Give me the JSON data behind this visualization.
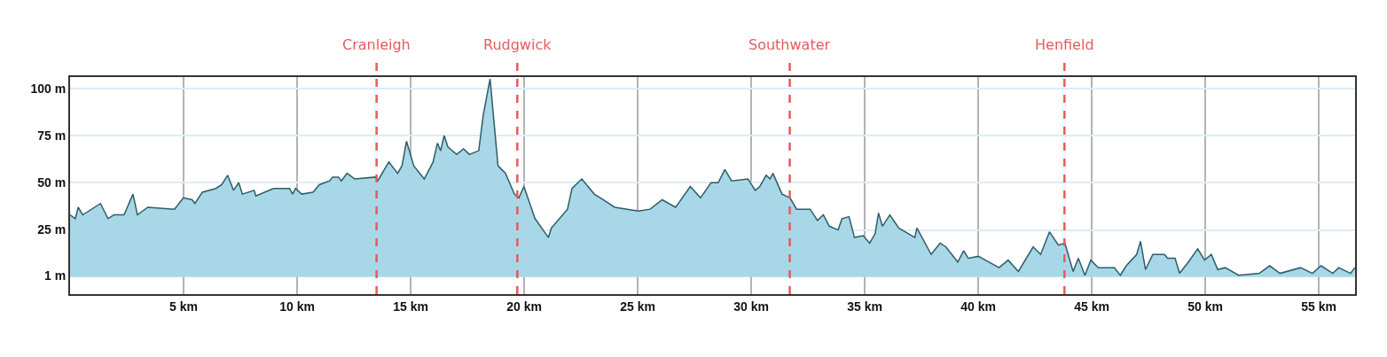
{
  "chart_data": {
    "type": "area",
    "x": [
      0,
      0.23,
      0.36,
      0.56,
      1.34,
      1.67,
      1.93,
      2.38,
      2.77,
      2.97,
      3.42,
      4.6,
      4.99,
      5.38,
      5.5,
      5.83,
      6.42,
      6.68,
      6.94,
      7.2,
      7.43,
      7.59,
      8.11,
      8.18,
      8.96,
      9.67,
      9.8,
      9.93,
      10.2,
      10.7,
      10.98,
      11.43,
      11.56,
      11.82,
      11.95,
      12.2,
      12.54,
      13.45,
      13.55,
      14.04,
      14.43,
      14.62,
      14.82,
      15.14,
      15.6,
      15.99,
      16.18,
      16.32,
      16.48,
      16.64,
      17.03,
      17.33,
      17.59,
      18.0,
      18.2,
      18.5,
      18.85,
      19.18,
      19.57,
      19.77,
      19.99,
      20.48,
      21.07,
      21.2,
      21.91,
      22.11,
      22.54,
      23.09,
      23.48,
      23.99,
      25.04,
      25.55,
      26.08,
      26.67,
      27.32,
      27.77,
      28.23,
      28.55,
      28.84,
      29.14,
      29.86,
      30.18,
      30.38,
      30.66,
      30.83,
      30.96,
      31.36,
      31.71,
      32.0,
      32.6,
      32.92,
      33.18,
      33.44,
      33.83,
      34.0,
      34.31,
      34.55,
      34.93,
      35.22,
      35.46,
      35.61,
      35.78,
      36.11,
      36.5,
      37.21,
      37.3,
      37.93,
      38.32,
      38.58,
      39.1,
      39.36,
      39.56,
      40.01,
      40.92,
      41.32,
      41.77,
      42.42,
      42.75,
      43.14,
      43.53,
      43.82,
      44.18,
      44.41,
      44.7,
      44.96,
      45.29,
      46.0,
      46.26,
      46.52,
      46.98,
      47.15,
      47.37,
      47.69,
      48.21,
      48.34,
      48.67,
      48.87,
      49.26,
      49.67,
      49.97,
      50.27,
      50.55,
      50.88,
      51.47,
      52.38,
      52.84,
      53.29,
      54.2,
      54.72,
      55.1,
      55.62,
      55.88,
      56.4,
      56.59
    ],
    "series": [
      {
        "color": "#a8d7e8",
        "values": [
          33,
          31,
          37,
          33,
          39,
          31,
          33,
          33,
          44,
          33,
          37,
          36,
          42,
          41,
          39,
          45,
          47,
          49,
          54,
          46,
          50,
          44,
          46,
          43,
          47,
          47,
          44,
          47,
          44,
          45,
          49,
          51,
          53,
          53,
          51,
          55,
          52,
          53,
          51,
          61,
          55,
          59,
          72,
          59,
          52,
          61,
          71,
          67,
          75,
          69,
          65,
          68,
          65,
          67,
          86,
          105,
          59,
          55,
          44,
          42,
          48,
          31,
          21,
          26,
          36,
          47,
          52,
          44,
          41,
          37,
          35,
          36,
          41,
          37,
          48,
          42,
          50,
          50,
          57,
          51,
          52,
          46,
          48,
          54,
          52,
          55,
          44,
          42,
          36,
          36,
          30,
          33,
          27,
          25,
          31,
          32,
          21,
          22,
          18,
          23,
          34,
          27,
          33,
          26,
          21,
          26,
          12,
          18,
          16,
          8,
          14,
          10,
          11,
          5,
          9,
          3,
          16,
          12,
          24,
          17,
          18,
          3,
          10,
          1,
          9,
          5,
          5,
          1,
          6,
          12,
          19,
          4,
          12,
          12,
          10,
          10,
          2,
          8,
          15,
          9,
          12,
          4,
          5,
          1,
          2,
          6,
          2,
          5,
          2,
          6,
          2,
          5,
          2,
          5
        ]
      }
    ],
    "xlim": [
      0,
      56.6
    ],
    "ylim": [
      -9,
      106
    ],
    "xticks": [
      {
        "value": 5,
        "label": "5 km"
      },
      {
        "value": 10,
        "label": "10 km"
      },
      {
        "value": 15,
        "label": "15 km"
      },
      {
        "value": 20,
        "label": "20 km"
      },
      {
        "value": 25,
        "label": "25 km"
      },
      {
        "value": 30,
        "label": "30 km"
      },
      {
        "value": 35,
        "label": "35 km"
      },
      {
        "value": 40,
        "label": "40 km"
      },
      {
        "value": 45,
        "label": "45 km"
      },
      {
        "value": 50,
        "label": "50 km"
      },
      {
        "value": 55,
        "label": "55 km"
      }
    ],
    "yticks": [
      {
        "value": 1,
        "label": "1 m"
      },
      {
        "value": 25,
        "label": "25 m"
      },
      {
        "value": 50,
        "label": "50 m"
      },
      {
        "value": 75,
        "label": "75 m"
      },
      {
        "value": 100,
        "label": "100 m"
      }
    ],
    "grid": true,
    "ref_lines": [
      {
        "axis": "x",
        "value": 13.5,
        "label": "Cranleigh",
        "color": "#e8595e",
        "line_style": "dashed"
      },
      {
        "axis": "x",
        "value": 19.7,
        "label": "Rudgwick",
        "color": "#e8595e",
        "line_style": "dashed"
      },
      {
        "axis": "x",
        "value": 31.7,
        "label": "Southwater",
        "color": "#e8595e",
        "line_style": "dashed"
      },
      {
        "axis": "x",
        "value": 43.8,
        "label": "Henfield",
        "color": "#e8595e",
        "line_style": "dashed"
      }
    ]
  }
}
